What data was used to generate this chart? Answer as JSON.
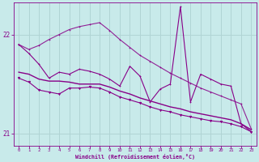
{
  "xlabel": "Windchill (Refroidissement éolien,°C)",
  "bg_color": "#c8eaea",
  "line_color": "#880088",
  "grid_color": "#b0d4d4",
  "xlim": [
    -0.5,
    23.5
  ],
  "ylim": [
    20.88,
    22.32
  ],
  "yticks": [
    21,
    22
  ],
  "xticks": [
    0,
    1,
    2,
    3,
    4,
    5,
    6,
    7,
    8,
    9,
    10,
    11,
    12,
    13,
    14,
    15,
    16,
    17,
    18,
    19,
    20,
    21,
    22,
    23
  ],
  "x": [
    0,
    1,
    2,
    3,
    4,
    5,
    6,
    7,
    8,
    9,
    10,
    11,
    12,
    13,
    14,
    15,
    16,
    17,
    18,
    19,
    20,
    21,
    22,
    23
  ],
  "line_upper": [
    21.9,
    21.85,
    21.89,
    21.95,
    22.0,
    22.05,
    22.08,
    22.1,
    22.12,
    22.04,
    21.95,
    21.87,
    21.79,
    21.73,
    21.67,
    21.61,
    21.56,
    21.51,
    21.46,
    21.42,
    21.38,
    21.34,
    21.3,
    21.05
  ],
  "line_jagged": [
    21.9,
    21.81,
    21.7,
    21.56,
    21.62,
    21.6,
    21.65,
    21.63,
    21.6,
    21.55,
    21.48,
    21.68,
    21.58,
    21.32,
    21.45,
    21.5,
    22.28,
    21.32,
    21.6,
    21.55,
    21.5,
    21.48,
    21.1,
    21.02
  ],
  "line_mid1": [
    21.62,
    21.6,
    21.55,
    21.53,
    21.53,
    21.52,
    21.5,
    21.5,
    21.5,
    21.47,
    21.43,
    21.4,
    21.36,
    21.33,
    21.3,
    21.27,
    21.25,
    21.22,
    21.2,
    21.18,
    21.16,
    21.14,
    21.1,
    21.04
  ],
  "line_mid2": [
    21.56,
    21.52,
    21.44,
    21.42,
    21.4,
    21.46,
    21.46,
    21.47,
    21.46,
    21.42,
    21.37,
    21.34,
    21.31,
    21.27,
    21.24,
    21.22,
    21.19,
    21.17,
    21.15,
    21.13,
    21.12,
    21.1,
    21.07,
    21.02
  ]
}
